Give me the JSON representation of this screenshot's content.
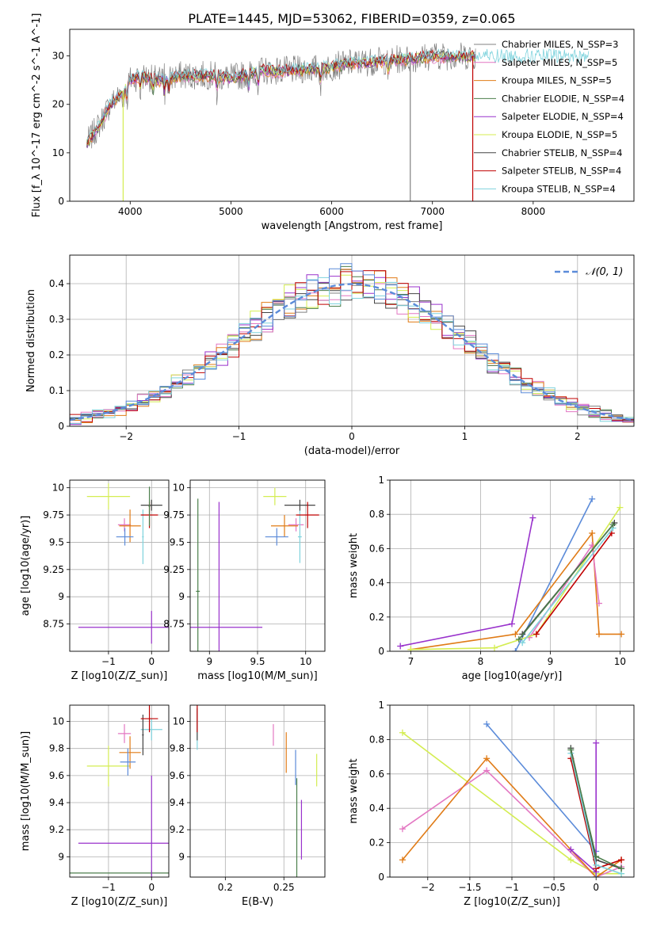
{
  "title": "PLATE=1445, MJD=53062, FIBERID=0359, z=0.065",
  "colors": {
    "c0": "#808080",
    "c1": "#e377c2",
    "c2": "#e07b16",
    "c3": "#4c7f4c",
    "c4": "#9932cc",
    "c5": "#d4ed52",
    "c6": "#444444",
    "c7": "#c00000",
    "c8": "#7fd3dd",
    "c9": "#5b8bd9"
  },
  "chart_data": [
    {
      "type": "line",
      "xlabel": "wavelength [Angstrom, rest frame]",
      "ylabel": "Flux [f_λ 10^-17 erg cm^-2 s^-1 A^-1]",
      "xlim": [
        3400,
        9000
      ],
      "ylim": [
        0,
        35.5
      ],
      "xticks": [
        4000,
        5000,
        6000,
        7000,
        8000
      ],
      "yticks": [
        0,
        10,
        20,
        30
      ],
      "legend_position": "right",
      "series": [
        {
          "name": "Chabrier MILES, N_SSP=3",
          "color": "c0"
        },
        {
          "name": "Salpeter MILES, N_SSP=5",
          "color": "c1"
        },
        {
          "name": "Kroupa MILES, N_SSP=5",
          "color": "c2"
        },
        {
          "name": "Chabrier ELODIE, N_SSP=4",
          "color": "c3"
        },
        {
          "name": "Salpeter ELODIE, N_SSP=4",
          "color": "c4"
        },
        {
          "name": "Kroupa ELODIE, N_SSP=5",
          "color": "c5"
        },
        {
          "name": "Chabrier STELIB, N_SSP=4",
          "color": "c6"
        },
        {
          "name": "Salpeter STELIB, N_SSP=4",
          "color": "c7"
        },
        {
          "name": "Kroupa STELIB, N_SSP=4",
          "color": "c8"
        }
      ],
      "spectrum_trend": {
        "x": [
          3570,
          3700,
          3800,
          3900,
          4000,
          4100,
          4300,
          4500,
          4800,
          5000,
          5300,
          5600,
          5900,
          6200,
          6500,
          6800,
          7000,
          7300,
          7600,
          7900,
          8200,
          8500
        ],
        "y": [
          12,
          16,
          20,
          22,
          25,
          26,
          25,
          26,
          26,
          25.5,
          27,
          27,
          27.5,
          28.5,
          29,
          29.5,
          30,
          30,
          30,
          30,
          30,
          30
        ]
      },
      "drops": [
        3930,
        6780,
        7400
      ]
    },
    {
      "type": "histogram",
      "xlabel": "(data-model)/error",
      "ylabel": "Normed distribution",
      "xlim": [
        -2.5,
        2.5
      ],
      "ylim": [
        0,
        0.48
      ],
      "xticks": [
        -2,
        -1,
        0,
        1,
        2
      ],
      "yticks": [
        0.0,
        0.1,
        0.2,
        0.3,
        0.4
      ],
      "legend": "𝒩(0, 1)",
      "legend_position": "top-right",
      "gaussian": {
        "mu": 0,
        "sigma": 1,
        "color": "c9"
      },
      "bins": {
        "start": -2.5,
        "width": 0.1,
        "count": 50
      }
    },
    {
      "type": "scatter",
      "xlabel": "Z [log10(Z/Z_sun)]",
      "ylabel": "age [log10(age/yr)]",
      "xlim": [
        -1.9,
        0.4
      ],
      "ylim": [
        8.5,
        10.07
      ],
      "xticks": [
        -1,
        0
      ],
      "yticks": [
        8.75,
        9.0,
        9.25,
        9.5,
        9.75,
        10.0
      ],
      "points": [
        {
          "color": "c5",
          "x": -1.0,
          "y": 9.92,
          "ex": 0.5,
          "ey": 0.12
        },
        {
          "color": "c1",
          "x": -0.63,
          "y": 9.66,
          "ex": 0.15,
          "ey": 0.06
        },
        {
          "color": "c2",
          "x": -0.5,
          "y": 9.65,
          "ex": 0.25,
          "ey": 0.15
        },
        {
          "color": "c9",
          "x": -0.62,
          "y": 9.55,
          "ex": 0.2,
          "ey": 0.08
        },
        {
          "color": "c8",
          "x": -0.2,
          "y": 9.55,
          "ex": 0.02,
          "ey": 0.25
        },
        {
          "color": "c6",
          "x": 0.0,
          "y": 9.84,
          "ex": 0.25,
          "ey": 0.05
        },
        {
          "color": "c7",
          "x": -0.05,
          "y": 9.75,
          "ex": 0.2,
          "ey": 0.12
        },
        {
          "color": "c3",
          "x": -0.05,
          "y": 9.83,
          "ex": 0.02,
          "ey": 0.18
        },
        {
          "color": "c4",
          "x": 0.0,
          "y": 8.72,
          "ex": 1.7,
          "ey": 0.15
        }
      ]
    },
    {
      "type": "scatter",
      "xlabel": "mass [log10(M/M_sun)]",
      "xlim": [
        8.8,
        10.2
      ],
      "ylim": [
        8.5,
        10.07
      ],
      "xticks": [
        9.0,
        9.5,
        10.0
      ],
      "yticks": [
        8.75,
        9.0,
        9.25,
        9.5,
        9.75,
        10.0
      ],
      "points": [
        {
          "color": "c5",
          "x": 9.68,
          "y": 9.92,
          "ex": 0.12,
          "ey": 0.08
        },
        {
          "color": "c1",
          "x": 9.9,
          "y": 9.66,
          "ex": 0.08,
          "ey": 0.06
        },
        {
          "color": "c2",
          "x": 9.78,
          "y": 9.65,
          "ex": 0.14,
          "ey": 0.1
        },
        {
          "color": "c9",
          "x": 9.7,
          "y": 9.55,
          "ex": 0.12,
          "ey": 0.08
        },
        {
          "color": "c8",
          "x": 9.94,
          "y": 9.55,
          "ex": 0.02,
          "ey": 0.24
        },
        {
          "color": "c6",
          "x": 9.94,
          "y": 9.84,
          "ex": 0.16,
          "ey": 0.05
        },
        {
          "color": "c7",
          "x": 10.02,
          "y": 9.75,
          "ex": 0.12,
          "ey": 0.12
        },
        {
          "color": "c3",
          "x": 8.88,
          "y": 9.05,
          "ex": 0.02,
          "ey": 0.85
        },
        {
          "color": "c4",
          "x": 9.1,
          "y": 8.72,
          "ex": 0.45,
          "ey": 1.15
        }
      ]
    },
    {
      "type": "line",
      "xlabel": "age [log10(age/yr)]",
      "ylabel": "mass weight",
      "xlim": [
        6.7,
        10.2
      ],
      "ylim": [
        0,
        1
      ],
      "xticks": [
        7,
        8,
        9,
        10
      ],
      "yticks": [
        0.0,
        0.2,
        0.4,
        0.6,
        0.8,
        1.0
      ],
      "series": [
        {
          "color": "c4",
          "x": [
            6.85,
            8.45,
            8.75
          ],
          "y": [
            0.03,
            0.16,
            0.78
          ]
        },
        {
          "color": "c9",
          "x": [
            8.5,
            9.6
          ],
          "y": [
            0.0,
            0.89
          ]
        },
        {
          "color": "c2",
          "x": [
            7.0,
            8.5,
            9.6,
            9.7,
            10.02
          ],
          "y": [
            0.01,
            0.1,
            0.69,
            0.1,
            0.1
          ]
        },
        {
          "color": "c1",
          "x": [
            8.7,
            9.6,
            9.7
          ],
          "y": [
            0.08,
            0.62,
            0.28
          ]
        },
        {
          "color": "c5",
          "x": [
            7.0,
            8.2,
            8.8,
            10.0
          ],
          "y": [
            0.01,
            0.02,
            0.1,
            0.84
          ]
        },
        {
          "color": "c6",
          "x": [
            8.6,
            9.92
          ],
          "y": [
            0.1,
            0.75
          ]
        },
        {
          "color": "c7",
          "x": [
            8.8,
            9.88
          ],
          "y": [
            0.1,
            0.69
          ]
        },
        {
          "color": "c8",
          "x": [
            8.6,
            9.9
          ],
          "y": [
            0.05,
            0.72
          ]
        },
        {
          "color": "c3",
          "x": [
            8.55,
            9.9
          ],
          "y": [
            0.07,
            0.74
          ]
        }
      ]
    },
    {
      "type": "scatter",
      "xlabel": "Z [log10(Z/Z_sun)]",
      "ylabel": "mass [log10(M/M_sun)]",
      "xlim": [
        -1.9,
        0.4
      ],
      "ylim": [
        8.85,
        10.12
      ],
      "xticks": [
        -1,
        0
      ],
      "yticks": [
        9.0,
        9.2,
        9.4,
        9.6,
        9.8,
        10.0
      ],
      "points": [
        {
          "color": "c5",
          "x": -1.0,
          "y": 9.67,
          "ex": 0.5,
          "ey": 0.15
        },
        {
          "color": "c1",
          "x": -0.63,
          "y": 9.91,
          "ex": 0.15,
          "ey": 0.07
        },
        {
          "color": "c2",
          "x": -0.5,
          "y": 9.77,
          "ex": 0.25,
          "ey": 0.12
        },
        {
          "color": "c9",
          "x": -0.55,
          "y": 9.7,
          "ex": 0.18,
          "ey": 0.1
        },
        {
          "color": "c8",
          "x": 0.0,
          "y": 9.94,
          "ex": 0.25,
          "ey": 0.08
        },
        {
          "color": "c6",
          "x": -0.2,
          "y": 9.9,
          "ex": 0.02,
          "ey": 0.15
        },
        {
          "color": "c7",
          "x": -0.05,
          "y": 10.02,
          "ex": 0.2,
          "ey": 0.1
        },
        {
          "color": "c3",
          "x": 0.0,
          "y": 8.88,
          "ex": 1.9,
          "ey": 0.02
        },
        {
          "color": "c4",
          "x": 0.0,
          "y": 9.1,
          "ex": 1.7,
          "ey": 0.5
        }
      ]
    },
    {
      "type": "scatter",
      "xlabel": "E(B-V)",
      "xlim": [
        0.17,
        0.285
      ],
      "ylim": [
        8.85,
        10.12
      ],
      "xticks": [
        0.2,
        0.25
      ],
      "yticks": [
        9.0,
        9.2,
        9.4,
        9.6,
        9.8,
        10.0
      ],
      "points": [
        {
          "color": "c5",
          "x": 0.278,
          "y": 9.64,
          "ex": 0,
          "ey": 0.12
        },
        {
          "color": "c1",
          "x": 0.241,
          "y": 9.9,
          "ex": 0,
          "ey": 0.08
        },
        {
          "color": "c2",
          "x": 0.252,
          "y": 9.77,
          "ex": 0,
          "ey": 0.15
        },
        {
          "color": "c9",
          "x": 0.26,
          "y": 9.66,
          "ex": 0,
          "ey": 0.13
        },
        {
          "color": "c8",
          "x": 0.176,
          "y": 9.94,
          "ex": 0,
          "ey": 0.15
        },
        {
          "color": "c6",
          "x": 0.176,
          "y": 9.98,
          "ex": 0,
          "ey": 0.12
        },
        {
          "color": "c7",
          "x": 0.176,
          "y": 10.02,
          "ex": 0,
          "ey": 0.1
        },
        {
          "color": "c3",
          "x": 0.261,
          "y": 9.2,
          "ex": 0,
          "ey": 0.38
        },
        {
          "color": "c4",
          "x": 0.265,
          "y": 9.2,
          "ex": 0,
          "ey": 0.22
        }
      ]
    },
    {
      "type": "line",
      "xlabel": "Z [log10(Z/Z_sun)]",
      "ylabel": "mass weight",
      "xlim": [
        -2.45,
        0.45
      ],
      "ylim": [
        0,
        1
      ],
      "xticks": [
        -2.0,
        -1.5,
        -1.0,
        -0.5,
        0.0
      ],
      "yticks": [
        0.0,
        0.2,
        0.4,
        0.6,
        0.8,
        1.0
      ],
      "series": [
        {
          "color": "c5",
          "x": [
            -2.3,
            -0.3,
            0.0,
            0.3
          ],
          "y": [
            0.84,
            0.1,
            0.02,
            0.02
          ]
        },
        {
          "color": "c1",
          "x": [
            -2.3,
            -1.3,
            0.0,
            0.3
          ],
          "y": [
            0.28,
            0.62,
            0.0,
            0.06
          ]
        },
        {
          "color": "c2",
          "x": [
            -2.3,
            -1.3,
            0.0,
            0.3
          ],
          "y": [
            0.1,
            0.69,
            0.0,
            0.1
          ]
        },
        {
          "color": "c9",
          "x": [
            -1.3,
            0.0,
            0.0
          ],
          "y": [
            0.89,
            0.15,
            0.0
          ]
        },
        {
          "color": "c4",
          "x": [
            -0.3,
            0.0,
            0.0
          ],
          "y": [
            0.16,
            0.03,
            0.78
          ]
        },
        {
          "color": "c6",
          "x": [
            -0.3,
            0.0,
            0.3
          ],
          "y": [
            0.75,
            0.1,
            0.05
          ]
        },
        {
          "color": "c7",
          "x": [
            -0.3,
            0.0,
            0.3
          ],
          "y": [
            0.69,
            0.05,
            0.1
          ]
        },
        {
          "color": "c8",
          "x": [
            -0.3,
            0.0,
            0.3
          ],
          "y": [
            0.72,
            0.07,
            0.02
          ]
        },
        {
          "color": "c3",
          "x": [
            -0.3,
            0.0,
            0.3
          ],
          "y": [
            0.74,
            0.12,
            0.05
          ]
        }
      ]
    }
  ]
}
